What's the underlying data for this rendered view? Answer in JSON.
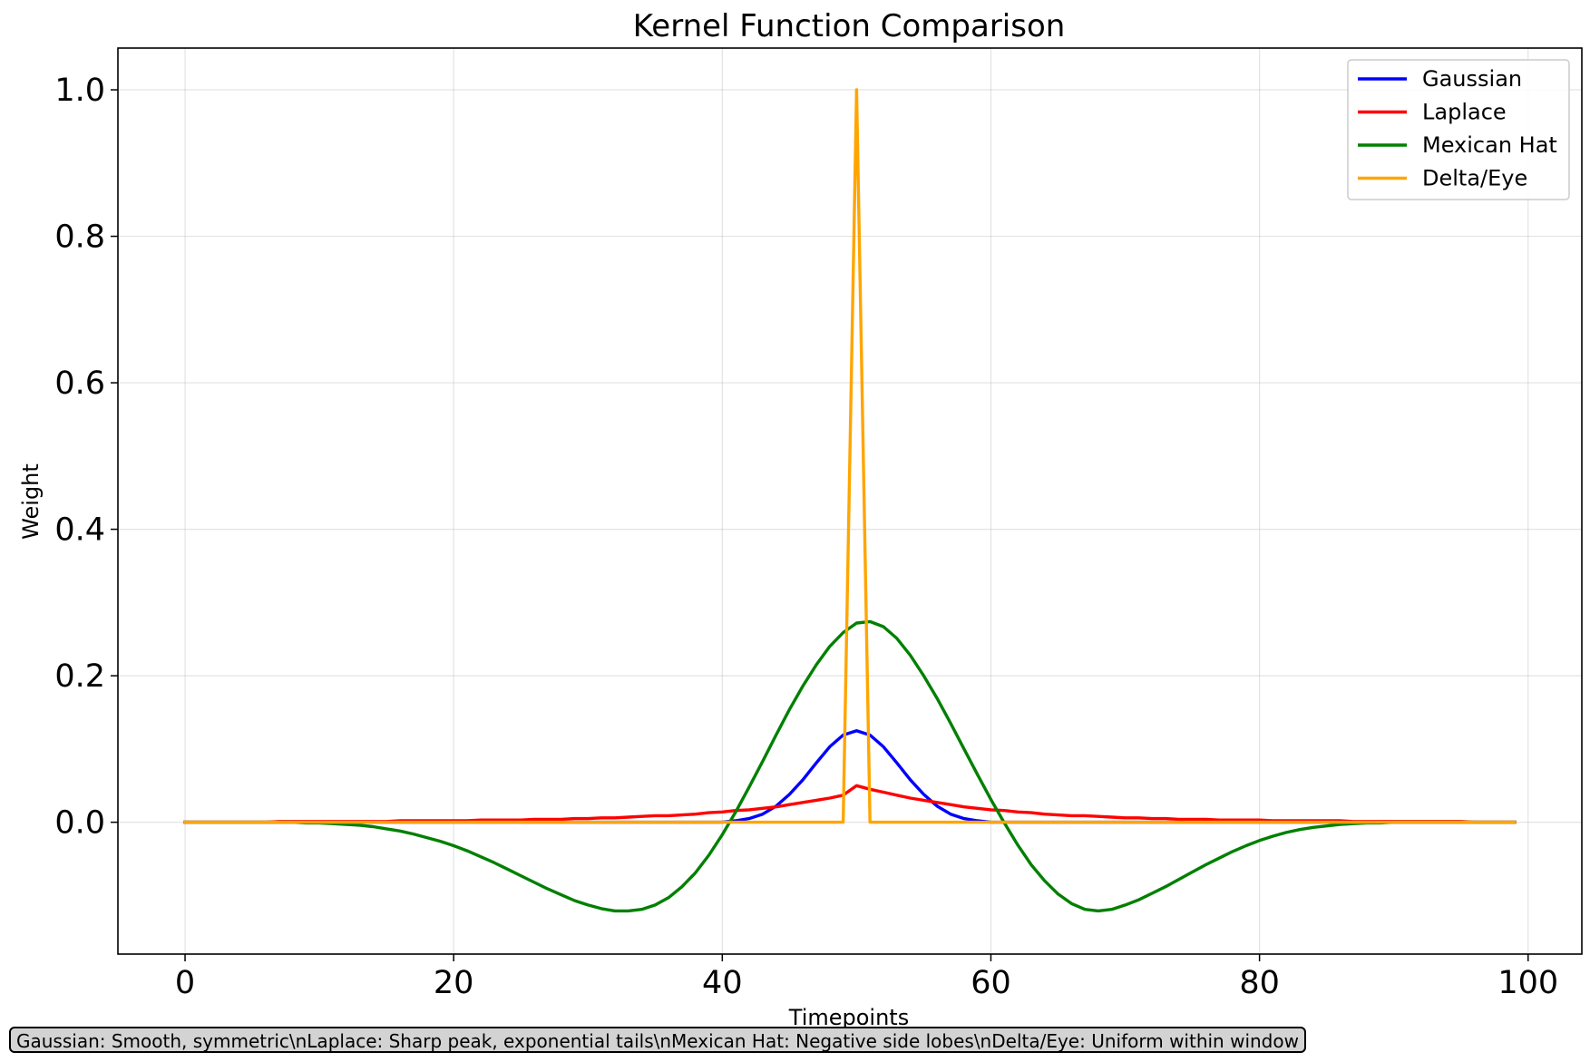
{
  "chart_data": {
    "type": "line",
    "title": "Kernel Function Comparison",
    "xlabel": "Timepoints",
    "ylabel": "Weight",
    "xlim": [
      -5,
      104
    ],
    "ylim": [
      -0.18,
      1.057
    ],
    "xticks": [
      0,
      20,
      40,
      60,
      80,
      100
    ],
    "xtick_labels": [
      "0",
      "20",
      "40",
      "60",
      "80",
      "100"
    ],
    "yticks": [
      0.0,
      0.2,
      0.4,
      0.6,
      0.8,
      1.0
    ],
    "ytick_labels": [
      "0.0",
      "0.2",
      "0.4",
      "0.6",
      "0.8",
      "1.0"
    ],
    "grid": true,
    "legend_position": "top-right",
    "x_range": [
      0,
      99
    ],
    "series": [
      {
        "name": "Gaussian",
        "color": "#0000ff",
        "x": [
          0,
          1,
          2,
          3,
          4,
          5,
          6,
          7,
          8,
          9,
          10,
          11,
          12,
          13,
          14,
          15,
          16,
          17,
          18,
          19,
          20,
          21,
          22,
          23,
          24,
          25,
          26,
          27,
          28,
          29,
          30,
          31,
          32,
          33,
          34,
          35,
          36,
          37,
          38,
          39,
          40,
          41,
          42,
          43,
          44,
          45,
          46,
          47,
          48,
          49,
          50,
          51,
          52,
          53,
          54,
          55,
          56,
          57,
          58,
          59,
          60,
          61,
          62,
          63,
          64,
          65,
          66,
          67,
          68,
          69,
          70,
          71,
          72,
          73,
          74,
          75,
          76,
          77,
          78,
          79,
          80,
          81,
          82,
          83,
          84,
          85,
          86,
          87,
          88,
          89,
          90,
          91,
          92,
          93,
          94,
          95,
          96,
          97,
          98,
          99
        ],
        "values": [
          0,
          0,
          0,
          0,
          0,
          0,
          0,
          0,
          0,
          0,
          0,
          0,
          0,
          0,
          0,
          0,
          0,
          0,
          0,
          0,
          0,
          0,
          0,
          0,
          0,
          0,
          0,
          0,
          0,
          0,
          0,
          0,
          0,
          0,
          0,
          0,
          0,
          0,
          0,
          0,
          0,
          0.002,
          0.005,
          0.011,
          0.022,
          0.038,
          0.058,
          0.081,
          0.103,
          0.119,
          0.125,
          0.119,
          0.103,
          0.081,
          0.058,
          0.038,
          0.022,
          0.011,
          0.005,
          0.002,
          0,
          0,
          0,
          0,
          0,
          0,
          0,
          0,
          0,
          0,
          0,
          0,
          0,
          0,
          0,
          0,
          0,
          0,
          0,
          0,
          0,
          0,
          0,
          0,
          0,
          0,
          0,
          0,
          0,
          0,
          0,
          0,
          0,
          0,
          0,
          0,
          0,
          0,
          0,
          0
        ]
      },
      {
        "name": "Laplace",
        "color": "#ff0000",
        "x": [
          0,
          1,
          2,
          3,
          4,
          5,
          6,
          7,
          8,
          9,
          10,
          11,
          12,
          13,
          14,
          15,
          16,
          17,
          18,
          19,
          20,
          21,
          22,
          23,
          24,
          25,
          26,
          27,
          28,
          29,
          30,
          31,
          32,
          33,
          34,
          35,
          36,
          37,
          38,
          39,
          40,
          41,
          42,
          43,
          44,
          45,
          46,
          47,
          48,
          49,
          50,
          51,
          52,
          53,
          54,
          55,
          56,
          57,
          58,
          59,
          60,
          61,
          62,
          63,
          64,
          65,
          66,
          67,
          68,
          69,
          70,
          71,
          72,
          73,
          74,
          75,
          76,
          77,
          78,
          79,
          80,
          81,
          82,
          83,
          84,
          85,
          86,
          87,
          88,
          89,
          90,
          91,
          92,
          93,
          94,
          95,
          96,
          97,
          98,
          99
        ],
        "values": [
          0,
          0,
          0,
          0,
          0,
          0,
          0,
          0.001,
          0.001,
          0.001,
          0.001,
          0.001,
          0.001,
          0.001,
          0.001,
          0.001,
          0.002,
          0.002,
          0.002,
          0.002,
          0.002,
          0.002,
          0.003,
          0.003,
          0.003,
          0.003,
          0.004,
          0.004,
          0.004,
          0.005,
          0.005,
          0.006,
          0.006,
          0.007,
          0.008,
          0.009,
          0.009,
          0.01,
          0.011,
          0.013,
          0.014,
          0.016,
          0.017,
          0.019,
          0.021,
          0.024,
          0.027,
          0.03,
          0.033,
          0.037,
          0.05,
          0.045,
          0.041,
          0.037,
          0.033,
          0.03,
          0.027,
          0.024,
          0.021,
          0.019,
          0.017,
          0.016,
          0.014,
          0.013,
          0.011,
          0.01,
          0.009,
          0.009,
          0.008,
          0.007,
          0.006,
          0.006,
          0.005,
          0.005,
          0.004,
          0.004,
          0.004,
          0.003,
          0.003,
          0.003,
          0.003,
          0.002,
          0.002,
          0.002,
          0.002,
          0.002,
          0.002,
          0.001,
          0.001,
          0.001,
          0.001,
          0.001,
          0.001,
          0.001,
          0.001,
          0.001,
          0,
          0,
          0,
          0
        ]
      },
      {
        "name": "Mexican Hat",
        "color": "#008000",
        "x": [
          0,
          1,
          2,
          3,
          4,
          5,
          6,
          7,
          8,
          9,
          10,
          11,
          12,
          13,
          14,
          15,
          16,
          17,
          18,
          19,
          20,
          21,
          22,
          23,
          24,
          25,
          26,
          27,
          28,
          29,
          30,
          31,
          32,
          33,
          34,
          35,
          36,
          37,
          38,
          39,
          40,
          41,
          42,
          43,
          44,
          45,
          46,
          47,
          48,
          49,
          50,
          51,
          52,
          53,
          54,
          55,
          56,
          57,
          58,
          59,
          60,
          61,
          62,
          63,
          64,
          65,
          66,
          67,
          68,
          69,
          70,
          71,
          72,
          73,
          74,
          75,
          76,
          77,
          78,
          79,
          80,
          81,
          82,
          83,
          84,
          85,
          86,
          87,
          88,
          89,
          90,
          91,
          92,
          93,
          94,
          95,
          96,
          97,
          98,
          99
        ],
        "values": [
          0,
          0,
          0,
          0,
          0,
          0,
          0,
          0,
          0,
          -0.001,
          -0.001,
          -0.002,
          -0.003,
          -0.004,
          -0.006,
          -0.009,
          -0.012,
          -0.016,
          -0.021,
          -0.026,
          -0.032,
          -0.039,
          -0.047,
          -0.055,
          -0.064,
          -0.073,
          -0.082,
          -0.091,
          -0.099,
          -0.107,
          -0.113,
          -0.118,
          -0.121,
          -0.121,
          -0.119,
          -0.113,
          -0.103,
          -0.088,
          -0.069,
          -0.045,
          -0.017,
          0.014,
          0.048,
          0.083,
          0.119,
          0.154,
          0.186,
          0.215,
          0.24,
          0.259,
          0.272,
          0.274,
          0.267,
          0.251,
          0.228,
          0.2,
          0.169,
          0.135,
          0.1,
          0.065,
          0.031,
          -0.001,
          -0.031,
          -0.058,
          -0.08,
          -0.098,
          -0.111,
          -0.119,
          -0.121,
          -0.119,
          -0.113,
          -0.106,
          -0.097,
          -0.088,
          -0.078,
          -0.068,
          -0.058,
          -0.049,
          -0.04,
          -0.032,
          -0.025,
          -0.019,
          -0.014,
          -0.01,
          -0.007,
          -0.005,
          -0.003,
          -0.002,
          -0.001,
          -0.001,
          0,
          0,
          0,
          0,
          0,
          0,
          0,
          0,
          0,
          0
        ]
      },
      {
        "name": "Delta/Eye",
        "color": "#ffa500",
        "x": [
          0,
          1,
          2,
          3,
          4,
          5,
          6,
          7,
          8,
          9,
          10,
          11,
          12,
          13,
          14,
          15,
          16,
          17,
          18,
          19,
          20,
          21,
          22,
          23,
          24,
          25,
          26,
          27,
          28,
          29,
          30,
          31,
          32,
          33,
          34,
          35,
          36,
          37,
          38,
          39,
          40,
          41,
          42,
          43,
          44,
          45,
          46,
          47,
          48,
          49,
          50,
          51,
          52,
          53,
          54,
          55,
          56,
          57,
          58,
          59,
          60,
          61,
          62,
          63,
          64,
          65,
          66,
          67,
          68,
          69,
          70,
          71,
          72,
          73,
          74,
          75,
          76,
          77,
          78,
          79,
          80,
          81,
          82,
          83,
          84,
          85,
          86,
          87,
          88,
          89,
          90,
          91,
          92,
          93,
          94,
          95,
          96,
          97,
          98,
          99
        ],
        "values": [
          0,
          0,
          0,
          0,
          0,
          0,
          0,
          0,
          0,
          0,
          0,
          0,
          0,
          0,
          0,
          0,
          0,
          0,
          0,
          0,
          0,
          0,
          0,
          0,
          0,
          0,
          0,
          0,
          0,
          0,
          0,
          0,
          0,
          0,
          0,
          0,
          0,
          0,
          0,
          0,
          0,
          0,
          0,
          0,
          0,
          0,
          0,
          0,
          0,
          0,
          1,
          0,
          0,
          0,
          0,
          0,
          0,
          0,
          0,
          0,
          0,
          0,
          0,
          0,
          0,
          0,
          0,
          0,
          0,
          0,
          0,
          0,
          0,
          0,
          0,
          0,
          0,
          0,
          0,
          0,
          0,
          0,
          0,
          0,
          0,
          0,
          0,
          0,
          0,
          0,
          0,
          0,
          0,
          0,
          0,
          0,
          0,
          0,
          0,
          0
        ]
      }
    ],
    "annotation": "Gaussian: Smooth, symmetric\\nLaplace: Sharp peak, exponential tails\\nMexican Hat: Negative side lobes\\nDelta/Eye: Uniform within window"
  }
}
